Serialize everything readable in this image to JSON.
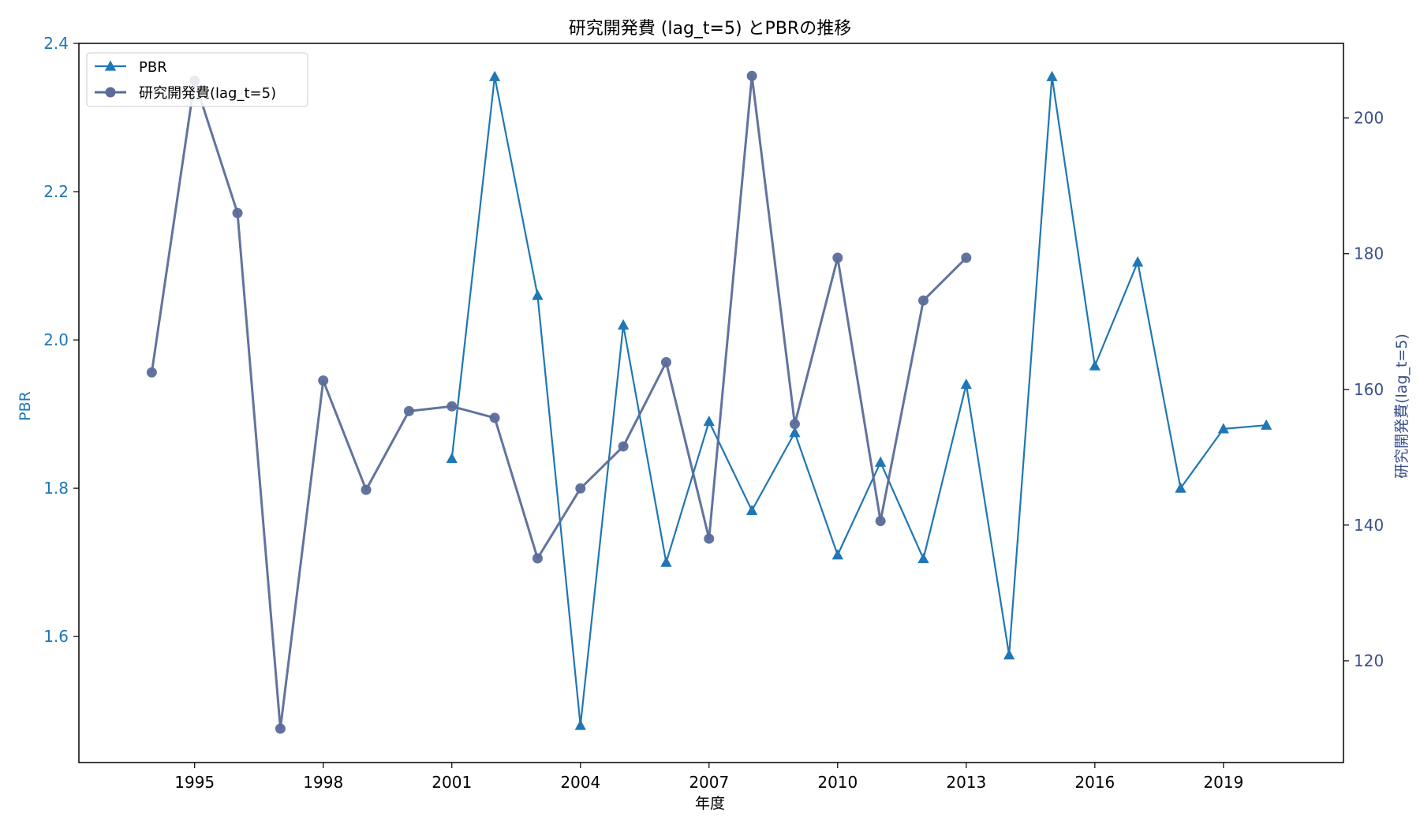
{
  "colors": {
    "pbr": "#1f77b4",
    "rd": "#5a6b9a",
    "left_axis_text": "#1f77b4",
    "right_axis_text": "#3b4f8a",
    "axis": "#000000"
  },
  "chart_data": {
    "type": "line",
    "title": "研究開発費 (lag_t=5) とPBRの推移",
    "xlabel": "年度",
    "ylabel_left": "PBR",
    "ylabel_right": "研究開発費(lag_t=5)",
    "xlim": [
      1992.3,
      2021.8
    ],
    "ylim_left": [
      1.43,
      2.4
    ],
    "ylim_right": [
      105,
      211
    ],
    "x_ticks": [
      1995,
      1998,
      2001,
      2004,
      2007,
      2010,
      2013,
      2016,
      2019
    ],
    "y_ticks_left": [
      1.6,
      1.8,
      2.0,
      2.2,
      2.4
    ],
    "y_ticks_left_labels": [
      "1.6",
      "1.8",
      "2.0",
      "2.2",
      "2.4"
    ],
    "y_ticks_right": [
      120,
      140,
      160,
      180,
      200
    ],
    "grid": false,
    "legend_position": "top-left",
    "series": [
      {
        "name": "PBR",
        "axis": "left",
        "marker": "triangle",
        "x": [
          2001,
          2002,
          2003,
          2004,
          2005,
          2006,
          2007,
          2008,
          2009,
          2010,
          2011,
          2012,
          2013,
          2014,
          2015,
          2016,
          2017,
          2018,
          2019,
          2020
        ],
        "y": [
          1.84,
          2.355,
          2.06,
          1.48,
          2.02,
          1.7,
          1.89,
          1.77,
          1.875,
          1.71,
          1.835,
          1.705,
          1.94,
          1.575,
          2.355,
          1.965,
          2.105,
          1.8,
          1.88,
          1.885
        ]
      },
      {
        "name": "研究開発費(lag_t=5)",
        "axis": "right",
        "marker": "circle",
        "x": [
          1994,
          1995,
          1996,
          1997,
          1998,
          1999,
          2000,
          2001,
          2002,
          2003,
          2004,
          2005,
          2006,
          2007,
          2008,
          2009,
          2010,
          2011,
          2012,
          2013
        ],
        "y": [
          162.5,
          205.5,
          186,
          110,
          161.3,
          145.2,
          156.8,
          157.5,
          155.8,
          135.1,
          145.4,
          151.6,
          164,
          138,
          206.2,
          154.9,
          179.4,
          140.6,
          173.1,
          179.4
        ]
      }
    ]
  }
}
